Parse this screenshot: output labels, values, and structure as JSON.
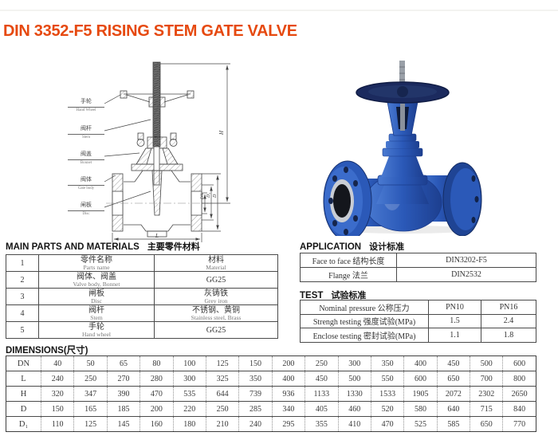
{
  "title": {
    "text": "DIN 3352-F5 RISING STEM GATE VALVE"
  },
  "colors": {
    "title_accent": "#e6490f",
    "valve_blue": "#2b59b8",
    "handwheel_navy": "#1b2a5e",
    "table_border": "#4a4a4a"
  },
  "drawing": {
    "labels": [
      {
        "zh": "手轮",
        "en": "Hand Wheel"
      },
      {
        "zh": "阀杆",
        "en": "Stem"
      },
      {
        "zh": "阀盖",
        "en": "Bonnet"
      },
      {
        "zh": "阀体",
        "en": "Gate body"
      },
      {
        "zh": "闸板",
        "en": "Disc"
      }
    ],
    "dims": {
      "H": "H",
      "DN": "DN",
      "D1": "D₁",
      "D": "D",
      "L": "L"
    }
  },
  "parts": {
    "heading_en": "MAIN PARTS AND MATERIALS",
    "heading_zh": "主要零件材料",
    "rows": [
      {
        "no": "1",
        "name_zh": "零件名称",
        "name_en": "Parts name",
        "mat_zh": "材料",
        "mat_en": "Material"
      },
      {
        "no": "2",
        "name_zh": "阀体、阀盖",
        "name_en": "Valve body, Bonnet",
        "mat_zh": "GG25",
        "mat_en": ""
      },
      {
        "no": "3",
        "name_zh": "闸板",
        "name_en": "Disc",
        "mat_zh": "灰铸铁",
        "mat_en": "Grey iron"
      },
      {
        "no": "4",
        "name_zh": "阀杆",
        "name_en": "Stem",
        "mat_zh": "不锈钢、黄铜",
        "mat_en": "Stainless steel, Brass"
      },
      {
        "no": "5",
        "name_zh": "手轮",
        "name_en": "Hand wheel",
        "mat_zh": "GG25",
        "mat_en": ""
      }
    ]
  },
  "application": {
    "heading_en": "APPLICATION",
    "heading_zh": "设计标准",
    "rows": [
      {
        "label": "Face to face 结构长度",
        "value": "DIN3202-F5"
      },
      {
        "label": "Flange 法兰",
        "value": "DIN2532"
      }
    ]
  },
  "test": {
    "heading_en": "TEST",
    "heading_zh": "试验标准",
    "rows": [
      {
        "label": "Nominal pressure 公称压力",
        "c1": "PN10",
        "c2": "PN16"
      },
      {
        "label": "Strengh testing 强度试验(MPa)",
        "c1": "1.5",
        "c2": "2.4"
      },
      {
        "label": "Enclose testing 密封试验(MPa)",
        "c1": "1.1",
        "c2": "1.8"
      }
    ]
  },
  "dimensions": {
    "heading": "DIMENSIONS(尺寸)",
    "row_headers": [
      "DN",
      "L",
      "H",
      "D",
      "D₁"
    ],
    "rows": [
      [
        "40",
        "50",
        "65",
        "80",
        "100",
        "125",
        "150",
        "200",
        "250",
        "300",
        "350",
        "400",
        "450",
        "500",
        "600"
      ],
      [
        "240",
        "250",
        "270",
        "280",
        "300",
        "325",
        "350",
        "400",
        "450",
        "500",
        "550",
        "600",
        "650",
        "700",
        "800"
      ],
      [
        "320",
        "347",
        "390",
        "470",
        "535",
        "644",
        "739",
        "936",
        "1133",
        "1330",
        "1533",
        "1905",
        "2072",
        "2302",
        "2650"
      ],
      [
        "150",
        "165",
        "185",
        "200",
        "220",
        "250",
        "285",
        "340",
        "405",
        "460",
        "520",
        "580",
        "640",
        "715",
        "840"
      ],
      [
        "110",
        "125",
        "145",
        "160",
        "180",
        "210",
        "240",
        "295",
        "355",
        "410",
        "470",
        "525",
        "585",
        "650",
        "770"
      ]
    ]
  }
}
